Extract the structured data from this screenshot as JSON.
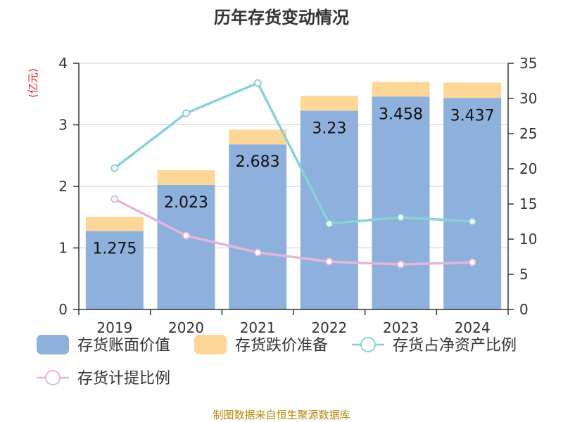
{
  "chart_data": {
    "type": "bar",
    "title": "历年存货变动情况",
    "left_axis_unit": "(亿元)",
    "right_axis_unit": "%",
    "categories": [
      "2019",
      "2020",
      "2021",
      "2022",
      "2023",
      "2024"
    ],
    "left_ylim": [
      0,
      4
    ],
    "left_ticks": [
      "0",
      "1",
      "2",
      "3",
      "4"
    ],
    "right_ylim": [
      0,
      35
    ],
    "right_ticks": [
      "0",
      "5",
      "10",
      "15",
      "20",
      "25",
      "30",
      "35"
    ],
    "grid": true,
    "legend_position": "bottom",
    "series": [
      {
        "name": "存货账面价值",
        "kind": "bar",
        "stack": "a",
        "axis": "left",
        "color": "#8eb0dc",
        "values": [
          1.275,
          2.023,
          2.683,
          3.23,
          3.458,
          3.437
        ],
        "labels": [
          "1.275",
          "2.023",
          "2.683",
          "3.23",
          "3.458",
          "3.437"
        ]
      },
      {
        "name": "存货跌价准备",
        "kind": "bar",
        "stack": "a",
        "axis": "left",
        "color": "#fdd797",
        "values": [
          0.23,
          0.24,
          0.24,
          0.24,
          0.24,
          0.25
        ]
      },
      {
        "name": "存货占净资产比例",
        "kind": "line",
        "axis": "right",
        "color": "#88d2d5",
        "values": [
          20.1,
          27.9,
          32.2,
          12.2,
          13.1,
          12.5
        ]
      },
      {
        "name": "存货计提比例",
        "kind": "line",
        "axis": "right",
        "color": "#e5b6da",
        "values": [
          15.7,
          10.5,
          8.1,
          6.8,
          6.4,
          6.7
        ]
      }
    ],
    "source": "制图数据来自恒生聚源数据库"
  }
}
